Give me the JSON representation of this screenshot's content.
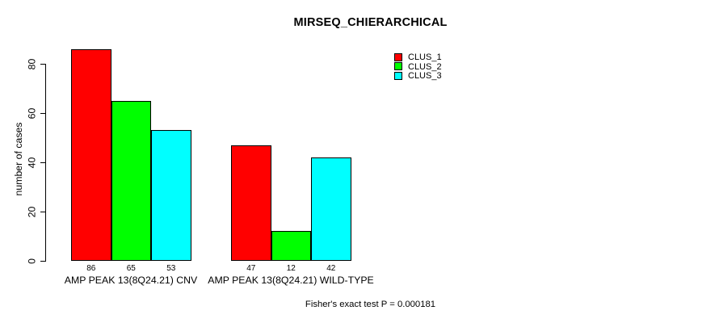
{
  "title": "MIRSEQ_CHIERARCHICAL",
  "annotation": "Fisher's exact test P = 0.000181",
  "colors": {
    "clus_1": "#FF0000",
    "clus_2": "#00FF00",
    "clus_3": "#00FFFF",
    "axis": "#000000",
    "background": "#FFFFFF"
  },
  "chart_data": {
    "type": "bar",
    "title": "MIRSEQ_CHIERARCHICAL",
    "xlabel": "",
    "ylabel": "number of cases",
    "categories": [
      "AMP PEAK 13(8Q24.21) CNV",
      "AMP PEAK 13(8Q24.21) WILD-TYPE"
    ],
    "series": [
      {
        "name": "CLUS_1",
        "color": "#FF0000",
        "values": [
          86,
          47
        ]
      },
      {
        "name": "CLUS_2",
        "color": "#00FF00",
        "values": [
          65,
          12
        ]
      },
      {
        "name": "CLUS_3",
        "color": "#00FFFF",
        "values": [
          53,
          42
        ]
      }
    ],
    "bar_value_labels": [
      [
        "86",
        "65",
        "53"
      ],
      [
        "47",
        "12",
        "42"
      ]
    ],
    "ylim": [
      0,
      80
    ],
    "yticks": [
      0,
      20,
      40,
      60,
      80
    ],
    "grid": false,
    "legend_position": "top-right",
    "legend_entries": [
      "CLUS_1",
      "CLUS_2",
      "CLUS_3"
    ],
    "annotation": "Fisher's exact test P = 0.000181"
  }
}
